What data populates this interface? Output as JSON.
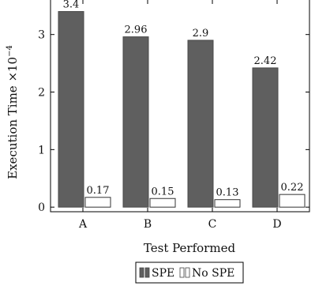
{
  "chart_data": {
    "type": "bar",
    "categories": [
      "A",
      "B",
      "C",
      "D"
    ],
    "series": [
      {
        "name": "SPE",
        "values": [
          3.4,
          2.96,
          2.9,
          2.42
        ],
        "color": "#5f5f5f"
      },
      {
        "name": "No SPE",
        "values": [
          0.17,
          0.15,
          0.13,
          0.22
        ],
        "color": "#ffffff"
      }
    ],
    "data_labels": [
      [
        "3.4",
        "2.96",
        "2.9",
        "2.42"
      ],
      [
        "0.17",
        "0.15",
        "0.13",
        "0.22"
      ]
    ],
    "xlabel": "Test Performed",
    "ylabel_text": "Execution Time ×10",
    "ylabel_exponent": "−4",
    "yticks": [
      "0",
      "1",
      "2",
      "3"
    ],
    "ylim": [
      -0.08,
      3.6
    ],
    "grid": false,
    "legend_position": "bottom-center"
  }
}
